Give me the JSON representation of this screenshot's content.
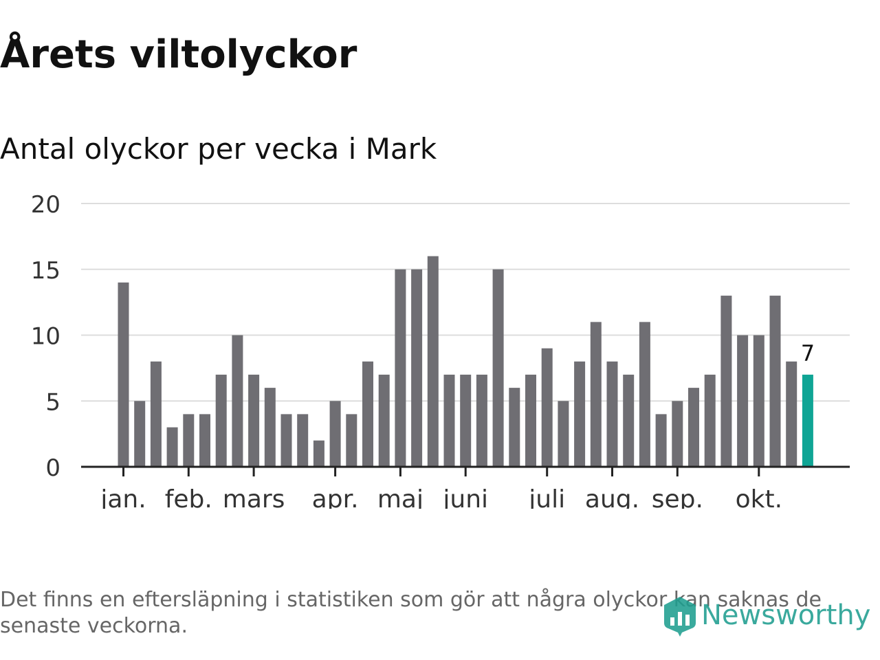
{
  "title": "Årets viltolyckor",
  "chart_data": {
    "type": "bar",
    "title": "Antal olyckor per vecka i Mark",
    "xlabel": "",
    "ylabel": "",
    "ylim": [
      0,
      20
    ],
    "yticks": [
      0,
      5,
      10,
      15,
      20
    ],
    "grid": true,
    "values": [
      14,
      5,
      8,
      3,
      4,
      4,
      7,
      10,
      7,
      6,
      4,
      4,
      2,
      5,
      4,
      8,
      7,
      15,
      15,
      16,
      7,
      7,
      7,
      15,
      6,
      7,
      9,
      5,
      8,
      11,
      8,
      7,
      11,
      4,
      5,
      6,
      7,
      13,
      10,
      10,
      13,
      8,
      7
    ],
    "month_labels": [
      {
        "label": "jan.",
        "week_index": 0
      },
      {
        "label": "feb.",
        "week_index": 4
      },
      {
        "label": "mars",
        "week_index": 8
      },
      {
        "label": "apr.",
        "week_index": 13
      },
      {
        "label": "maj",
        "week_index": 17
      },
      {
        "label": "juni",
        "week_index": 21
      },
      {
        "label": "juli",
        "week_index": 26
      },
      {
        "label": "aug.",
        "week_index": 30
      },
      {
        "label": "sep.",
        "week_index": 34
      },
      {
        "label": "okt.",
        "week_index": 39
      }
    ],
    "highlight_last": true,
    "last_value_label": "7",
    "colors": {
      "bar": "#6f6e73",
      "highlight": "#0fa595",
      "grid": "#dddddd",
      "axis": "#222222",
      "tick_text": "#333333"
    }
  },
  "footnote": "Det finns en eftersläpning i statistiken som gör att några olyckor kan saknas de senaste veckorna.",
  "logo": {
    "text": "Newsworthy",
    "icon": "newsworthy-logo-icon",
    "color": "#1f9e90"
  }
}
